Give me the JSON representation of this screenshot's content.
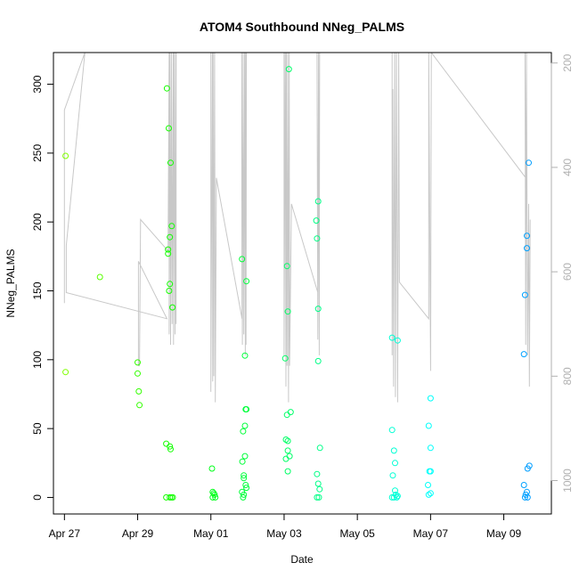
{
  "chart_data": {
    "type": "scatter",
    "title": "ATOM4 Southbound NNeg_PALMS",
    "xlabel": "Date",
    "ylabel": "NNeg_PALMS",
    "x_ticks": [
      "Apr 27",
      "Apr 29",
      "May 01",
      "May 03",
      "May 05",
      "May 07",
      "May 09"
    ],
    "x_tick_days": [
      0,
      2,
      4,
      6,
      8,
      10,
      12
    ],
    "xlim_days": [
      -0.3,
      13.3
    ],
    "ylim": [
      -12,
      323
    ],
    "y_ticks": [
      0,
      50,
      100,
      150,
      200,
      250,
      300
    ],
    "y2_ticks": [
      200,
      400,
      600,
      800,
      1000
    ],
    "y2lim": [
      1064,
      180
    ],
    "point_color_range": [
      "#7fff00",
      "#00a5ff"
    ],
    "line_color": "#c8c8c8",
    "points": [
      {
        "x": 0.03,
        "y": 248
      },
      {
        "x": 0.03,
        "y": 91
      },
      {
        "x": 0.97,
        "y": 160
      },
      {
        "x": 2.0,
        "y": 98
      },
      {
        "x": 2.0,
        "y": 90
      },
      {
        "x": 2.03,
        "y": 77
      },
      {
        "x": 2.05,
        "y": 67
      },
      {
        "x": 2.8,
        "y": 297
      },
      {
        "x": 2.85,
        "y": 268
      },
      {
        "x": 2.9,
        "y": 243
      },
      {
        "x": 2.93,
        "y": 197
      },
      {
        "x": 2.88,
        "y": 189
      },
      {
        "x": 2.83,
        "y": 180
      },
      {
        "x": 2.83,
        "y": 177
      },
      {
        "x": 2.88,
        "y": 155
      },
      {
        "x": 2.86,
        "y": 150
      },
      {
        "x": 2.95,
        "y": 138
      },
      {
        "x": 2.78,
        "y": 39
      },
      {
        "x": 2.88,
        "y": 37
      },
      {
        "x": 2.9,
        "y": 35
      },
      {
        "x": 2.78,
        "y": 0
      },
      {
        "x": 2.88,
        "y": 0
      },
      {
        "x": 2.92,
        "y": 0
      },
      {
        "x": 2.96,
        "y": 0
      },
      {
        "x": 4.03,
        "y": 21
      },
      {
        "x": 4.05,
        "y": 4
      },
      {
        "x": 4.08,
        "y": 3
      },
      {
        "x": 4.1,
        "y": 2
      },
      {
        "x": 4.05,
        "y": 0
      },
      {
        "x": 4.12,
        "y": 0
      },
      {
        "x": 4.85,
        "y": 173
      },
      {
        "x": 4.97,
        "y": 157
      },
      {
        "x": 4.93,
        "y": 103
      },
      {
        "x": 4.95,
        "y": 64
      },
      {
        "x": 4.97,
        "y": 64
      },
      {
        "x": 4.93,
        "y": 52
      },
      {
        "x": 4.88,
        "y": 48
      },
      {
        "x": 4.93,
        "y": 30
      },
      {
        "x": 4.86,
        "y": 26
      },
      {
        "x": 4.9,
        "y": 16
      },
      {
        "x": 4.9,
        "y": 14
      },
      {
        "x": 4.95,
        "y": 9
      },
      {
        "x": 4.97,
        "y": 7
      },
      {
        "x": 4.85,
        "y": 4
      },
      {
        "x": 4.9,
        "y": 2
      },
      {
        "x": 4.88,
        "y": 0
      },
      {
        "x": 6.13,
        "y": 311
      },
      {
        "x": 6.08,
        "y": 168
      },
      {
        "x": 6.1,
        "y": 135
      },
      {
        "x": 6.03,
        "y": 101
      },
      {
        "x": 6.18,
        "y": 62
      },
      {
        "x": 6.08,
        "y": 60
      },
      {
        "x": 6.05,
        "y": 42
      },
      {
        "x": 6.1,
        "y": 41
      },
      {
        "x": 6.1,
        "y": 34
      },
      {
        "x": 6.15,
        "y": 30
      },
      {
        "x": 6.05,
        "y": 28
      },
      {
        "x": 6.1,
        "y": 19
      },
      {
        "x": 6.93,
        "y": 215
      },
      {
        "x": 6.88,
        "y": 201
      },
      {
        "x": 6.9,
        "y": 188
      },
      {
        "x": 6.93,
        "y": 137
      },
      {
        "x": 6.93,
        "y": 99
      },
      {
        "x": 6.98,
        "y": 36
      },
      {
        "x": 6.9,
        "y": 17
      },
      {
        "x": 6.93,
        "y": 10
      },
      {
        "x": 6.97,
        "y": 6
      },
      {
        "x": 6.9,
        "y": 0
      },
      {
        "x": 6.95,
        "y": 0
      },
      {
        "x": 8.95,
        "y": 116
      },
      {
        "x": 9.1,
        "y": 114
      },
      {
        "x": 8.95,
        "y": 49
      },
      {
        "x": 9.0,
        "y": 34
      },
      {
        "x": 9.03,
        "y": 25
      },
      {
        "x": 8.97,
        "y": 16
      },
      {
        "x": 9.03,
        "y": 5
      },
      {
        "x": 9.05,
        "y": 2
      },
      {
        "x": 8.95,
        "y": 0
      },
      {
        "x": 9.0,
        "y": 0
      },
      {
        "x": 9.08,
        "y": 0
      },
      {
        "x": 9.1,
        "y": 1
      },
      {
        "x": 10.0,
        "y": 72
      },
      {
        "x": 9.95,
        "y": 52
      },
      {
        "x": 10.0,
        "y": 36
      },
      {
        "x": 9.97,
        "y": 19
      },
      {
        "x": 10.0,
        "y": 19
      },
      {
        "x": 9.93,
        "y": 9
      },
      {
        "x": 10.0,
        "y": 3
      },
      {
        "x": 9.95,
        "y": 2
      },
      {
        "x": 12.68,
        "y": 243
      },
      {
        "x": 12.63,
        "y": 190
      },
      {
        "x": 12.63,
        "y": 181
      },
      {
        "x": 12.58,
        "y": 147
      },
      {
        "x": 12.55,
        "y": 104
      },
      {
        "x": 12.7,
        "y": 23
      },
      {
        "x": 12.65,
        "y": 21
      },
      {
        "x": 12.55,
        "y": 9
      },
      {
        "x": 12.63,
        "y": 4
      },
      {
        "x": 12.6,
        "y": 2
      },
      {
        "x": 12.58,
        "y": 0
      },
      {
        "x": 12.65,
        "y": 0
      }
    ],
    "depth_line": [
      {
        "x": 0.0,
        "y2": 660
      },
      {
        "x": 0.0,
        "y2": 290
      },
      {
        "x": 0.56,
        "y2": 180
      },
      {
        "x": 0.05,
        "y2": 550
      },
      {
        "x": 0.05,
        "y2": 580
      },
      {
        "x": 0.05,
        "y2": 640
      },
      {
        "x": 2.8,
        "y2": 690
      },
      {
        "x": 2.02,
        "y2": 580
      },
      {
        "x": 2.02,
        "y2": 600
      },
      {
        "x": 2.02,
        "y2": 780
      },
      {
        "x": 2.05,
        "y2": 780
      },
      {
        "x": 2.08,
        "y2": 500
      },
      {
        "x": 2.83,
        "y2": 560
      },
      {
        "x": 2.86,
        "y2": 180
      },
      {
        "x": 2.86,
        "y2": 720
      },
      {
        "x": 2.88,
        "y2": 180
      },
      {
        "x": 2.9,
        "y2": 740
      },
      {
        "x": 2.92,
        "y2": 180
      },
      {
        "x": 2.94,
        "y2": 700
      },
      {
        "x": 2.97,
        "y2": 180
      },
      {
        "x": 2.98,
        "y2": 740
      },
      {
        "x": 3.0,
        "y2": 180
      },
      {
        "x": 3.02,
        "y2": 720
      },
      {
        "x": 3.04,
        "y2": 180
      },
      {
        "x": 3.05,
        "y2": 700
      },
      {
        "x": 3.05,
        "y2": 180
      },
      {
        "x": 4.0,
        "y2": 180
      },
      {
        "x": 4.0,
        "y2": 830
      },
      {
        "x": 4.04,
        "y2": 180
      },
      {
        "x": 4.05,
        "y2": 810
      },
      {
        "x": 4.06,
        "y2": 180
      },
      {
        "x": 4.08,
        "y2": 800
      },
      {
        "x": 4.1,
        "y2": 180
      },
      {
        "x": 4.12,
        "y2": 850
      },
      {
        "x": 4.15,
        "y2": 420
      },
      {
        "x": 4.85,
        "y2": 690
      },
      {
        "x": 4.84,
        "y2": 180
      },
      {
        "x": 4.86,
        "y2": 740
      },
      {
        "x": 4.88,
        "y2": 180
      },
      {
        "x": 4.9,
        "y2": 720
      },
      {
        "x": 4.92,
        "y2": 180
      },
      {
        "x": 4.94,
        "y2": 760
      },
      {
        "x": 4.95,
        "y2": 180
      },
      {
        "x": 4.96,
        "y2": 740
      },
      {
        "x": 4.97,
        "y2": 180
      },
      {
        "x": 6.0,
        "y2": 180
      },
      {
        "x": 6.0,
        "y2": 760
      },
      {
        "x": 6.03,
        "y2": 180
      },
      {
        "x": 6.05,
        "y2": 820
      },
      {
        "x": 6.06,
        "y2": 180
      },
      {
        "x": 6.08,
        "y2": 780
      },
      {
        "x": 6.1,
        "y2": 180
      },
      {
        "x": 6.12,
        "y2": 850
      },
      {
        "x": 6.14,
        "y2": 180
      },
      {
        "x": 6.15,
        "y2": 780
      },
      {
        "x": 6.2,
        "y2": 470
      },
      {
        "x": 6.92,
        "y2": 640
      },
      {
        "x": 6.9,
        "y2": 180
      },
      {
        "x": 6.92,
        "y2": 730
      },
      {
        "x": 6.94,
        "y2": 180
      },
      {
        "x": 6.96,
        "y2": 760
      },
      {
        "x": 6.97,
        "y2": 180
      },
      {
        "x": 8.95,
        "y2": 180
      },
      {
        "x": 8.95,
        "y2": 760
      },
      {
        "x": 8.97,
        "y2": 250
      },
      {
        "x": 8.99,
        "y2": 820
      },
      {
        "x": 9.02,
        "y2": 180
      },
      {
        "x": 9.04,
        "y2": 840
      },
      {
        "x": 9.07,
        "y2": 180
      },
      {
        "x": 9.1,
        "y2": 850
      },
      {
        "x": 9.13,
        "y2": 180
      },
      {
        "x": 9.15,
        "y2": 620
      },
      {
        "x": 9.95,
        "y2": 690
      },
      {
        "x": 9.95,
        "y2": 180
      },
      {
        "x": 10.0,
        "y2": 790
      },
      {
        "x": 10.02,
        "y2": 180
      },
      {
        "x": 12.6,
        "y2": 420
      },
      {
        "x": 12.58,
        "y2": 180
      },
      {
        "x": 12.6,
        "y2": 740
      },
      {
        "x": 12.62,
        "y2": 180
      },
      {
        "x": 12.65,
        "y2": 760
      },
      {
        "x": 12.68,
        "y2": 470
      },
      {
        "x": 12.7,
        "y2": 820
      },
      {
        "x": 12.72,
        "y2": 500
      }
    ]
  }
}
